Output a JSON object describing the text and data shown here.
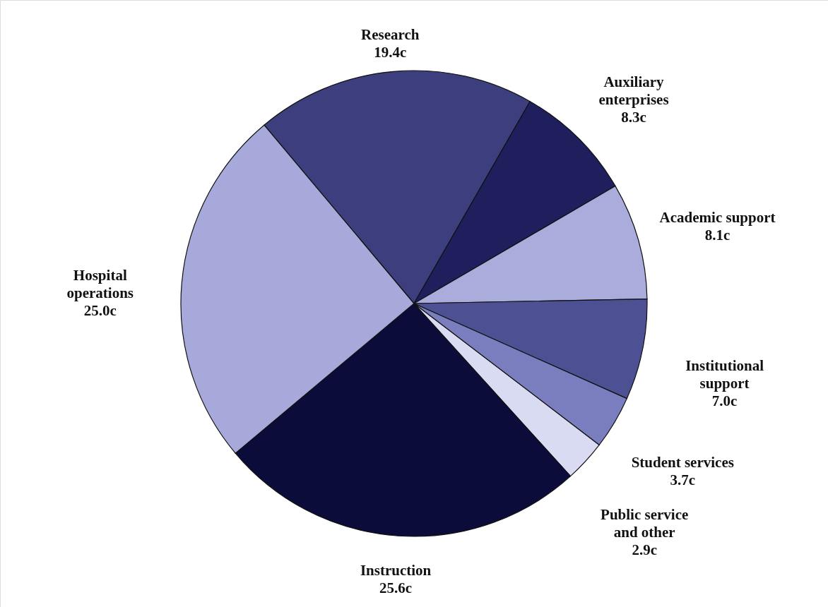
{
  "chart_data": {
    "type": "pie",
    "categories": [
      "Research",
      "Auxiliary enterprises",
      "Academic support",
      "Institutional support",
      "Student services",
      "Public service and other",
      "Instruction",
      "Hospital operations"
    ],
    "values": [
      19.4,
      8.3,
      8.1,
      7.0,
      3.7,
      2.9,
      25.6,
      25.0
    ],
    "colors": [
      "#3c3e7e",
      "#1e1f5c",
      "#aaacdc",
      "#4d5193",
      "#7a7ebf",
      "#d9dbf3",
      "#0c0c3a",
      "#a7a9da"
    ],
    "value_labels": [
      "19.4c",
      "8.3c",
      "8.1c",
      "7.0c",
      "3.7c",
      "2.9c",
      "25.6c",
      "25.0c"
    ]
  }
}
